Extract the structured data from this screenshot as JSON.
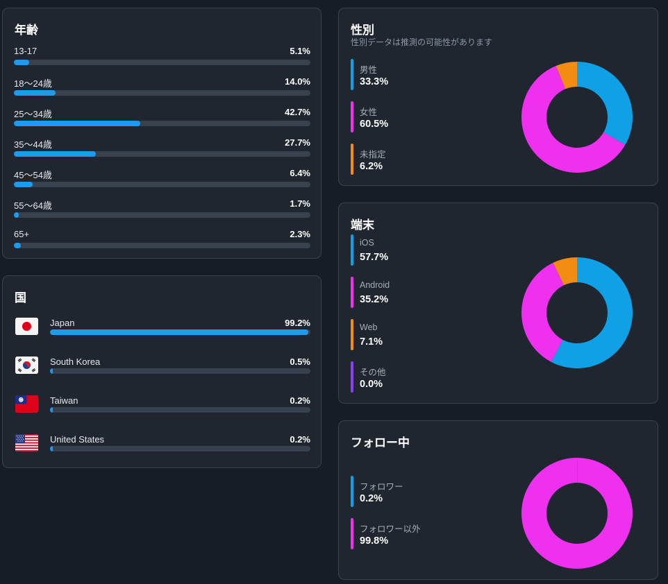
{
  "colors": {
    "bar": "#1d9bf0",
    "track": "#37424e",
    "donut_blue": "#0fa0e6",
    "donut_magenta": "#ef31ef",
    "donut_orange": "#f28c12",
    "donut_purple": "#8a3ff5"
  },
  "age": {
    "title": "年齢",
    "rows": [
      {
        "label": "13-17",
        "value": "5.1%",
        "pct": 5.1
      },
      {
        "label": "18〜24歳",
        "value": "14.0%",
        "pct": 14.0
      },
      {
        "label": "25〜34歳",
        "value": "42.7%",
        "pct": 42.7
      },
      {
        "label": "35〜44歳",
        "value": "27.7%",
        "pct": 27.7
      },
      {
        "label": "45〜54歳",
        "value": "6.4%",
        "pct": 6.4
      },
      {
        "label": "55〜64歳",
        "value": "1.7%",
        "pct": 1.7
      },
      {
        "label": "65+",
        "value": "2.3%",
        "pct": 2.3
      }
    ]
  },
  "country": {
    "title": "国",
    "rows": [
      {
        "label": "Japan",
        "value": "99.2%",
        "pct": 99.2,
        "flag": "japan-flag-icon"
      },
      {
        "label": "South Korea",
        "value": "0.5%",
        "pct": 0.5,
        "flag": "south-korea-flag-icon"
      },
      {
        "label": "Taiwan",
        "value": "0.2%",
        "pct": 0.2,
        "flag": "taiwan-flag-icon"
      },
      {
        "label": "United States",
        "value": "0.2%",
        "pct": 0.2,
        "flag": "us-flag-icon"
      }
    ]
  },
  "gender": {
    "title": "性別",
    "subtitle": "性別データは推測の可能性があります",
    "items": [
      {
        "label": "男性",
        "value": "33.3%",
        "pct": 33.3,
        "color": "#0fa0e6"
      },
      {
        "label": "女性",
        "value": "60.5%",
        "pct": 60.5,
        "color": "#ef31ef"
      },
      {
        "label": "未指定",
        "value": "6.2%",
        "pct": 6.2,
        "color": "#f28c12"
      }
    ]
  },
  "device": {
    "title": "端末",
    "items": [
      {
        "label": "iOS",
        "value": "57.7%",
        "pct": 57.7,
        "color": "#0fa0e6"
      },
      {
        "label": "Android",
        "value": "35.2%",
        "pct": 35.2,
        "color": "#ef31ef"
      },
      {
        "label": "Web",
        "value": "7.1%",
        "pct": 7.1,
        "color": "#f28c12"
      },
      {
        "label": "その他",
        "value": "0.0%",
        "pct": 0.0,
        "color": "#8a3ff5"
      }
    ]
  },
  "follow": {
    "title": "フォロー中",
    "items": [
      {
        "label": "フォロワー",
        "value": "0.2%",
        "pct": 0.2,
        "color": "#0fa0e6"
      },
      {
        "label": "フォロワー以外",
        "value": "99.8%",
        "pct": 99.8,
        "color": "#ef31ef"
      }
    ]
  }
}
